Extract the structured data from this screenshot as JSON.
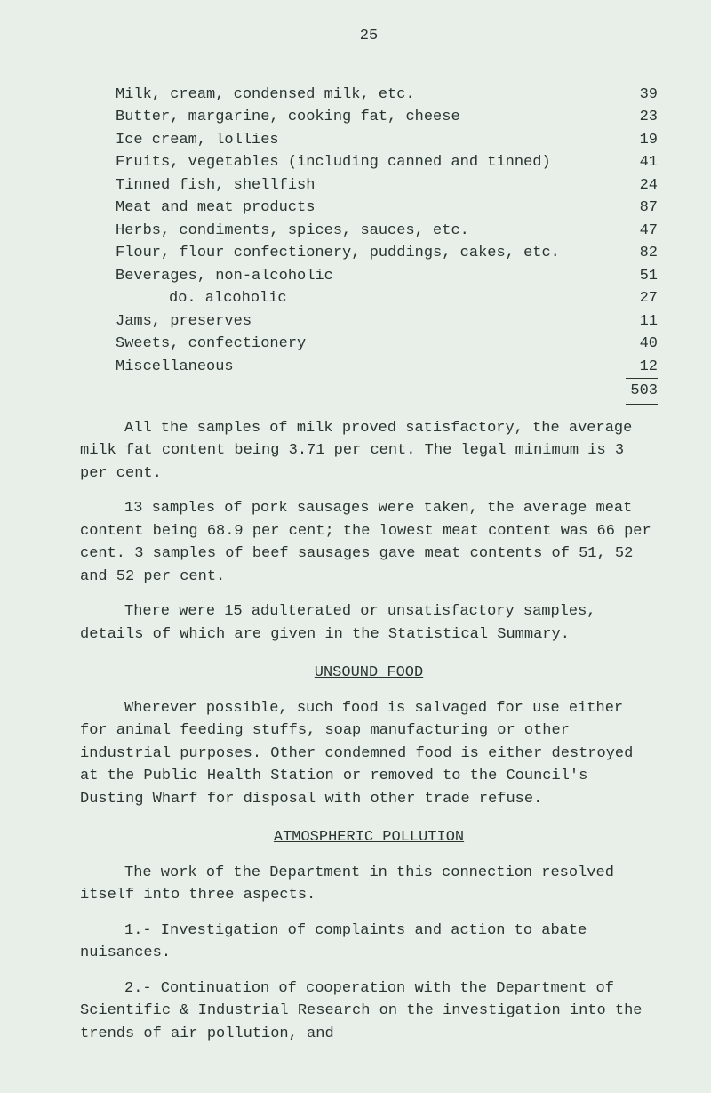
{
  "page_number": "25",
  "table": {
    "rows": [
      {
        "label": "Milk, cream, condensed milk, etc.",
        "value": "39"
      },
      {
        "label": "Butter, margarine, cooking fat, cheese",
        "value": "23"
      },
      {
        "label": "Ice cream, lollies",
        "value": "19"
      },
      {
        "label": "Fruits, vegetables (including canned and tinned)",
        "value": "41"
      },
      {
        "label": "Tinned fish, shellfish",
        "value": "24"
      },
      {
        "label": "Meat and meat products",
        "value": "87"
      },
      {
        "label": "Herbs, condiments, spices, sauces, etc.",
        "value": "47"
      },
      {
        "label": "Flour, flour confectionery, puddings, cakes, etc.",
        "value": "82"
      },
      {
        "label": "Beverages, non-alcoholic",
        "value": "51"
      },
      {
        "label": "do.  alcoholic",
        "value": "27",
        "indent": true
      },
      {
        "label": "Jams, preserves",
        "value": "11"
      },
      {
        "label": "Sweets, confectionery",
        "value": "40"
      },
      {
        "label": "Miscellaneous",
        "value": "12"
      }
    ],
    "total": "503"
  },
  "paragraphs": {
    "p1": "All the samples of milk proved satisfactory, the average milk fat content being 3.71 per cent. The legal minimum is 3 per cent.",
    "p2": "13 samples of pork sausages were taken, the average meat content being 68.9 per cent; the lowest meat content was 66 per cent. 3 samples of beef sausages gave meat contents of 51, 52 and 52 per cent.",
    "p3": "There were 15 adulterated or unsatisfactory samples, details of which are given in the Statistical Summary."
  },
  "section_unsound": {
    "heading": "UNSOUND FOOD",
    "p1": "Wherever possible, such food is salvaged for use either for animal feeding stuffs, soap manufacturing or other industrial purposes. Other condemned food is either destroyed at the Public Health Station or removed to the Council's Dusting Wharf for disposal with other trade refuse."
  },
  "section_atmos": {
    "heading": "ATMOSPHERIC POLLUTION",
    "p1": "The work of the Department in this connection resolved itself into three aspects.",
    "item1": "1.-  Investigation of complaints and action to abate nuisances.",
    "item2": "2.-  Continuation of cooperation with the Department of Scientific & Industrial Research on the investigation into the trends of air pollution, and"
  }
}
